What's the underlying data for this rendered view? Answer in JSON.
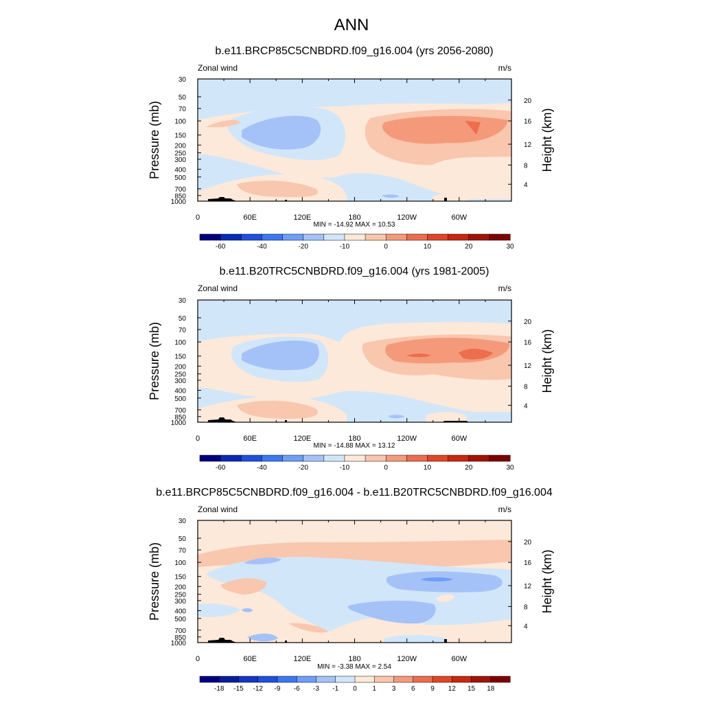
{
  "figure_title": "ANN",
  "chart_data": [
    {
      "type": "heatmap",
      "title": "b.e11.BRCP85C5CNBDRD.f09_g16.004 (yrs 2056-2080)",
      "variable": "Zonal wind",
      "units": "m/s",
      "ylabel": "Pressure (mb)",
      "ylabel_right": "Height (km)",
      "x_ticks": [
        "0",
        "60E",
        "120E",
        "180",
        "120W",
        "60W"
      ],
      "y_ticks": [
        "30",
        "50",
        "70",
        "100",
        "150",
        "200",
        "250",
        "300",
        "400",
        "500",
        "700",
        "850",
        "1000"
      ],
      "height_ticks": [
        "20",
        "16",
        "12",
        "8",
        "4"
      ],
      "min": -14.92,
      "max": 10.53,
      "stats": "MIN = -14.92  MAX =  10.53",
      "colorbar_labels": [
        "-60",
        "-40",
        "-20",
        "-10",
        "0",
        "10",
        "20",
        "30"
      ],
      "colors": [
        "#00007f",
        "#0a2ab2",
        "#1e50dc",
        "#3c78f0",
        "#6e9ef8",
        "#a5c2f8",
        "#d2e6fa",
        "#fde9d9",
        "#f9c6ae",
        "#f49a7a",
        "#ec6e4e",
        "#e04628",
        "#c82810",
        "#a01408",
        "#7f0000"
      ]
    },
    {
      "type": "heatmap",
      "title": "b.e11.B20TRC5CNBDRD.f09_g16.004 (yrs 1981-2005)",
      "variable": "Zonal wind",
      "units": "m/s",
      "ylabel": "Pressure (mb)",
      "ylabel_right": "Height (km)",
      "x_ticks": [
        "0",
        "60E",
        "120E",
        "180",
        "120W",
        "60W"
      ],
      "y_ticks": [
        "30",
        "50",
        "70",
        "100",
        "150",
        "200",
        "250",
        "300",
        "400",
        "500",
        "700",
        "850",
        "1000"
      ],
      "height_ticks": [
        "20",
        "16",
        "12",
        "8",
        "4"
      ],
      "min": -14.88,
      "max": 13.12,
      "stats": "MIN = -14.88  MAX =  13.12",
      "colorbar_labels": [
        "-60",
        "-40",
        "-20",
        "-10",
        "0",
        "10",
        "20",
        "30"
      ],
      "colors": [
        "#00007f",
        "#0a2ab2",
        "#1e50dc",
        "#3c78f0",
        "#6e9ef8",
        "#a5c2f8",
        "#d2e6fa",
        "#fde9d9",
        "#f9c6ae",
        "#f49a7a",
        "#ec6e4e",
        "#e04628",
        "#c82810",
        "#a01408",
        "#7f0000"
      ]
    },
    {
      "type": "heatmap",
      "title": "b.e11.BRCP85C5CNBDRD.f09_g16.004 - b.e11.B20TRC5CNBDRD.f09_g16.004",
      "variable": "Zonal wind",
      "units": "m/s",
      "ylabel": "Pressure (mb)",
      "ylabel_right": "Height (km)",
      "x_ticks": [
        "0",
        "60E",
        "120E",
        "180",
        "120W",
        "60W"
      ],
      "y_ticks": [
        "30",
        "50",
        "70",
        "100",
        "150",
        "200",
        "250",
        "300",
        "400",
        "500",
        "700",
        "850",
        "1000"
      ],
      "height_ticks": [
        "20",
        "16",
        "12",
        "8",
        "4"
      ],
      "min": -3.38,
      "max": 2.54,
      "stats": "MIN =  -3.38  MAX =   2.54",
      "colorbar_labels": [
        "-18",
        "-15",
        "-12",
        "-9",
        "-6",
        "-3",
        "-1",
        "0",
        "1",
        "3",
        "6",
        "9",
        "12",
        "15",
        "18"
      ],
      "colors": [
        "#00007f",
        "#0a1e9b",
        "#1436c3",
        "#1e50dc",
        "#3c78f0",
        "#6e9ef8",
        "#a5c2f8",
        "#d2e6fa",
        "#fde9d9",
        "#f9c6ae",
        "#f49a7a",
        "#ec6e4e",
        "#e04628",
        "#c82810",
        "#a01408",
        "#7f0000"
      ]
    }
  ]
}
